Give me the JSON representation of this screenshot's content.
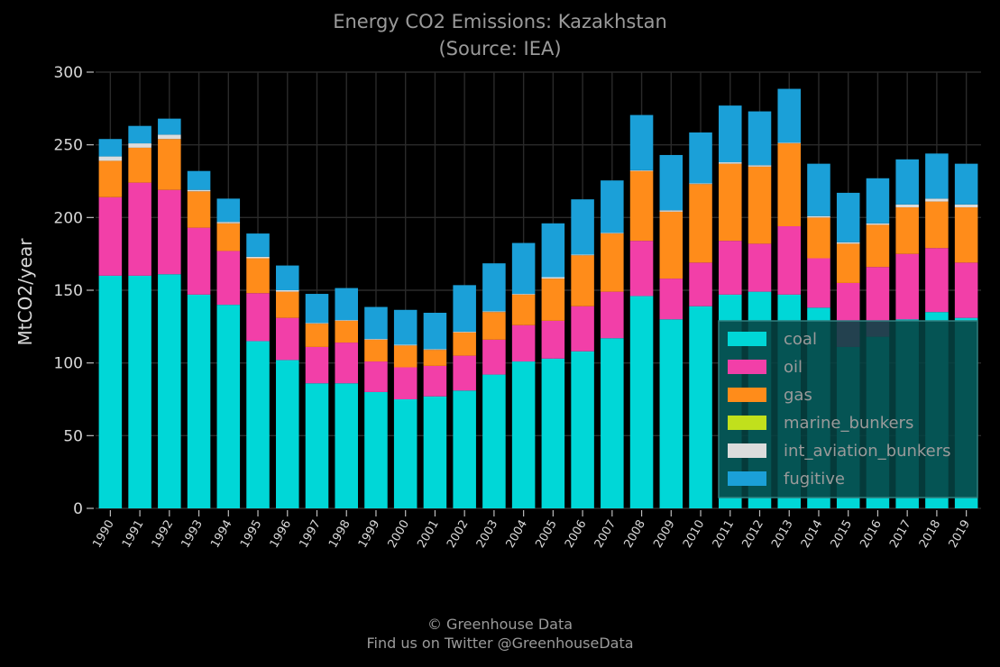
{
  "chart_data": {
    "type": "bar",
    "stacked": true,
    "title": "Energy CO2 Emissions: Kazakhstan",
    "subtitle": "(Source: IEA)",
    "xlabel": "",
    "ylabel": "MtCO2/year",
    "ylim": [
      0,
      300
    ],
    "yticks": [
      0,
      50,
      100,
      150,
      200,
      250,
      300
    ],
    "grid": true,
    "legend_position": "bottom-right",
    "categories": [
      "1990",
      "1991",
      "1992",
      "1993",
      "1994",
      "1995",
      "1996",
      "1997",
      "1998",
      "1999",
      "2000",
      "2001",
      "2002",
      "2003",
      "2004",
      "2005",
      "2006",
      "2007",
      "2008",
      "2009",
      "2010",
      "2011",
      "2012",
      "2013",
      "2014",
      "2015",
      "2016",
      "2017",
      "2018",
      "2019"
    ],
    "series": [
      {
        "name": "coal",
        "color": "#00d7d7",
        "values": [
          160,
          160,
          161,
          147,
          140,
          115,
          102,
          86,
          86,
          80,
          75,
          77,
          81,
          92,
          101,
          103,
          108,
          117,
          146,
          130,
          139,
          147,
          149,
          147,
          138,
          111,
          118,
          130,
          135,
          131
        ]
      },
      {
        "name": "oil",
        "color": "#f23fa8",
        "values": [
          54,
          64,
          58,
          46,
          37,
          33,
          29,
          25,
          28,
          21,
          22,
          21,
          24,
          24,
          25,
          26,
          31,
          32,
          38,
          28,
          30,
          37,
          33,
          47,
          34,
          44,
          48,
          45,
          44,
          38
        ]
      },
      {
        "name": "gas",
        "color": "#ff8c1a",
        "values": [
          25,
          24,
          35,
          25,
          19,
          24,
          18,
          16,
          15,
          15,
          15,
          11,
          16,
          19,
          21,
          29,
          35,
          40,
          48,
          46,
          54,
          53,
          53,
          57,
          28,
          27,
          29,
          32,
          32,
          38
        ]
      },
      {
        "name": "marine_bunkers",
        "color": "#c1e01c",
        "values": [
          0,
          0,
          0,
          0,
          0,
          0,
          0,
          0,
          0,
          0,
          0,
          0,
          0,
          0,
          0,
          0,
          0,
          0,
          0,
          0,
          0,
          0,
          0,
          0,
          0,
          0,
          0,
          0,
          0,
          0
        ]
      },
      {
        "name": "int_aviation_bunkers",
        "color": "#dcdcdc",
        "values": [
          3,
          3,
          3,
          1,
          1,
          1,
          1,
          0.5,
          0.5,
          0.5,
          0.5,
          0.5,
          0.5,
          0.5,
          0.5,
          1,
          0.5,
          0.5,
          0.5,
          1,
          0.5,
          1,
          1,
          0.5,
          1,
          1,
          1,
          2,
          2,
          2
        ]
      },
      {
        "name": "fugitive",
        "color": "#1ba0d8",
        "values": [
          12,
          12,
          11,
          13,
          16,
          16,
          17,
          20,
          22,
          22,
          24,
          25,
          32,
          33,
          35,
          37,
          38,
          36,
          38,
          38,
          35,
          39,
          37,
          37,
          36,
          34,
          31,
          31,
          31,
          28
        ]
      }
    ]
  },
  "credits": {
    "line1": "© Greenhouse Data",
    "line2": "Find us on Twitter @GreenhouseData"
  }
}
